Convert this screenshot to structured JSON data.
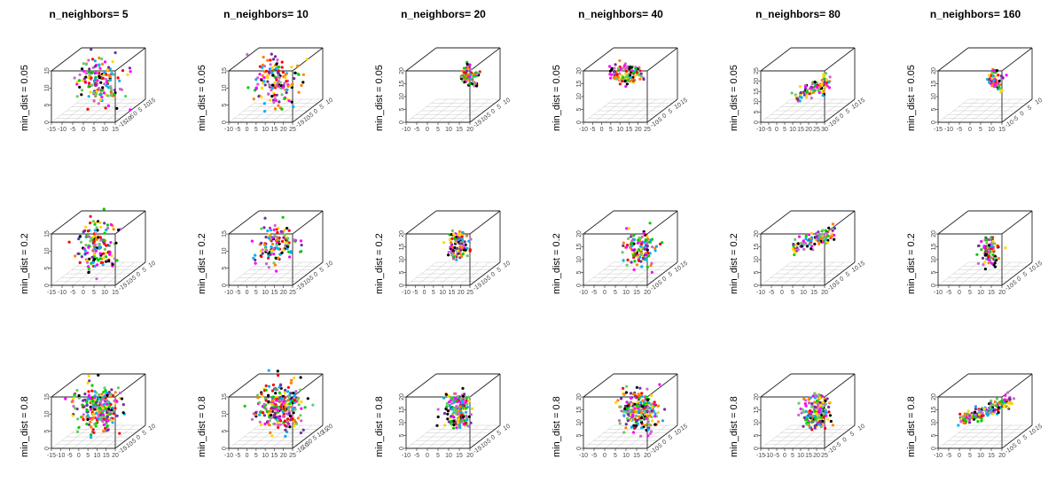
{
  "chart_data": {
    "type": "scatter",
    "layout": "3x6 grid of 3D scatter plots",
    "column_titles": [
      "n_neighbors= 5",
      "n_neighbors= 10",
      "n_neighbors= 20",
      "n_neighbors= 40",
      "n_neighbors= 80",
      "n_neighbors= 160"
    ],
    "row_labels": [
      "min_dist = 0.05",
      "min_dist = 0.2",
      "min_dist = 0.8"
    ],
    "colors": [
      "#ff00ff",
      "#00b0f0",
      "#00cc00",
      "#000000",
      "#ffd700",
      "#ff0000",
      "#7030a0",
      "#ff7f00",
      "#66cc66",
      "#cc66cc"
    ],
    "panels": [
      {
        "row": 0,
        "col": 0,
        "xticks": [
          "-15",
          "-10",
          "-5",
          "0",
          "5",
          "10",
          "15"
        ],
        "zticks": [
          "0",
          "5",
          "10",
          "15"
        ],
        "yticks": [
          "-15",
          "-10",
          "-5",
          "0",
          "5",
          "10",
          "15"
        ],
        "shape": "blob",
        "spread": 0.42,
        "density": 160,
        "cx": 0.5,
        "cy": 0.45
      },
      {
        "row": 0,
        "col": 1,
        "xticks": [
          "-10",
          "-5",
          "0",
          "5",
          "10",
          "15",
          "20",
          "25"
        ],
        "zticks": [
          "0",
          "5",
          "10",
          "15"
        ],
        "yticks": [
          "-15",
          "-10",
          "-5",
          "0",
          "5",
          "10"
        ],
        "shape": "blob",
        "spread": 0.38,
        "density": 150,
        "cx": 0.5,
        "cy": 0.45
      },
      {
        "row": 0,
        "col": 2,
        "xticks": [
          "-10",
          "-5",
          "0",
          "5",
          "10",
          "15",
          "20"
        ],
        "zticks": [
          "0",
          "5",
          "10",
          "15",
          "20"
        ],
        "yticks": [
          "-15",
          "-10",
          "-5",
          "0",
          "5",
          "10"
        ],
        "shape": "tree",
        "spread": 0.25,
        "density": 90,
        "cx": 0.6,
        "cy": 0.4
      },
      {
        "row": 0,
        "col": 3,
        "xticks": [
          "-10",
          "-5",
          "0",
          "5",
          "10",
          "15",
          "20",
          "25"
        ],
        "zticks": [
          "0",
          "5",
          "10",
          "15",
          "20"
        ],
        "yticks": [
          "-10",
          "-5",
          "0",
          "5",
          "10",
          "15"
        ],
        "shape": "ring",
        "spread": 0.28,
        "density": 110,
        "cx": 0.45,
        "cy": 0.35
      },
      {
        "row": 0,
        "col": 4,
        "xticks": [
          "-10",
          "-5",
          "0",
          "5",
          "10",
          "15",
          "20",
          "25",
          "30"
        ],
        "zticks": [
          "0",
          "5",
          "10",
          "15",
          "20",
          "25"
        ],
        "yticks": [
          "-10",
          "-5",
          "0",
          "5",
          "10",
          "15"
        ],
        "shape": "streak",
        "spread": 0.25,
        "density": 90,
        "cx": 0.55,
        "cy": 0.55
      },
      {
        "row": 0,
        "col": 5,
        "xticks": [
          "-15",
          "-10",
          "-5",
          "0",
          "5",
          "10",
          "15"
        ],
        "zticks": [
          "0",
          "5",
          "10",
          "15",
          "20"
        ],
        "yticks": [
          "-10",
          "-5",
          "0",
          "5",
          "10"
        ],
        "shape": "tree",
        "spread": 0.22,
        "density": 70,
        "cx": 0.55,
        "cy": 0.45
      },
      {
        "row": 1,
        "col": 0,
        "xticks": [
          "-15",
          "-10",
          "-5",
          "0",
          "5",
          "10",
          "15"
        ],
        "zticks": [
          "0",
          "5",
          "10",
          "15"
        ],
        "yticks": [
          "-15",
          "-10",
          "-5",
          "0",
          "5",
          "10"
        ],
        "shape": "blob",
        "spread": 0.42,
        "density": 150,
        "cx": 0.5,
        "cy": 0.45
      },
      {
        "row": 1,
        "col": 1,
        "xticks": [
          "-10",
          "-5",
          "0",
          "5",
          "10",
          "15",
          "20",
          "25"
        ],
        "zticks": [
          "0",
          "5",
          "10",
          "15"
        ],
        "yticks": [
          "-15",
          "-10",
          "-5",
          "0",
          "5",
          "10"
        ],
        "shape": "blob",
        "spread": 0.36,
        "density": 120,
        "cx": 0.5,
        "cy": 0.45
      },
      {
        "row": 1,
        "col": 2,
        "xticks": [
          "-10",
          "-5",
          "0",
          "5",
          "10",
          "15",
          "20",
          "25"
        ],
        "zticks": [
          "0",
          "5",
          "10",
          "15",
          "20"
        ],
        "yticks": [
          "-15",
          "-10",
          "-5",
          "0",
          "5",
          "10"
        ],
        "shape": "column",
        "spread": 0.25,
        "density": 110,
        "cx": 0.55,
        "cy": 0.45
      },
      {
        "row": 1,
        "col": 3,
        "xticks": [
          "-10",
          "-5",
          "0",
          "5",
          "10",
          "15",
          "20"
        ],
        "zticks": [
          "0",
          "5",
          "10",
          "15",
          "20"
        ],
        "yticks": [
          "-10",
          "-5",
          "0",
          "5",
          "10",
          "15"
        ],
        "shape": "blob",
        "spread": 0.3,
        "density": 130,
        "cx": 0.6,
        "cy": 0.5
      },
      {
        "row": 1,
        "col": 4,
        "xticks": [
          "-10",
          "-5",
          "0",
          "5",
          "10",
          "15",
          "20"
        ],
        "zticks": [
          "0",
          "5",
          "10",
          "15",
          "20"
        ],
        "yticks": [
          "-10",
          "-5",
          "0",
          "5",
          "10",
          "15"
        ],
        "shape": "streak",
        "spread": 0.3,
        "density": 110,
        "cx": 0.55,
        "cy": 0.4
      },
      {
        "row": 1,
        "col": 5,
        "xticks": [
          "-10",
          "-5",
          "0",
          "5",
          "10",
          "15",
          "20"
        ],
        "zticks": [
          "0",
          "5",
          "10",
          "15",
          "20"
        ],
        "yticks": [
          "-10",
          "-5",
          "0",
          "5",
          "10",
          "15"
        ],
        "shape": "column",
        "spread": 0.25,
        "density": 100,
        "cx": 0.55,
        "cy": 0.55
      },
      {
        "row": 2,
        "col": 0,
        "xticks": [
          "-15",
          "-10",
          "-5",
          "0",
          "5",
          "10",
          "15",
          "20"
        ],
        "zticks": [
          "0",
          "5",
          "10",
          "15"
        ],
        "yticks": [
          "-15",
          "-10",
          "-5",
          "0",
          "5",
          "10"
        ],
        "shape": "blob",
        "spread": 0.36,
        "density": 260,
        "cx": 0.5,
        "cy": 0.45
      },
      {
        "row": 2,
        "col": 1,
        "xticks": [
          "-10",
          "-5",
          "0",
          "5",
          "10",
          "15",
          "20",
          "25"
        ],
        "zticks": [
          "0",
          "5",
          "10",
          "15"
        ],
        "yticks": [
          "-15",
          "-10",
          "-5",
          "0",
          "5",
          "10",
          "15",
          "20"
        ],
        "shape": "blob",
        "spread": 0.4,
        "density": 280,
        "cx": 0.55,
        "cy": 0.45
      },
      {
        "row": 2,
        "col": 2,
        "xticks": [
          "-10",
          "-5",
          "0",
          "5",
          "10",
          "15",
          "20"
        ],
        "zticks": [
          "0",
          "5",
          "10",
          "15",
          "20"
        ],
        "yticks": [
          "-15",
          "-10",
          "-5",
          "0",
          "5",
          "10"
        ],
        "shape": "column",
        "spread": 0.3,
        "density": 180,
        "cx": 0.55,
        "cy": 0.5
      },
      {
        "row": 2,
        "col": 3,
        "xticks": [
          "-10",
          "-5",
          "0",
          "5",
          "10",
          "15",
          "20"
        ],
        "zticks": [
          "0",
          "5",
          "10",
          "15",
          "20"
        ],
        "yticks": [
          "-10",
          "-5",
          "0",
          "5",
          "10",
          "15"
        ],
        "shape": "blob",
        "spread": 0.32,
        "density": 220,
        "cx": 0.6,
        "cy": 0.5
      },
      {
        "row": 2,
        "col": 4,
        "xticks": [
          "-15",
          "-10",
          "-5",
          "0",
          "5",
          "10",
          "15",
          "20",
          "25"
        ],
        "zticks": [
          "0",
          "5",
          "10",
          "15",
          "20"
        ],
        "yticks": [
          "-10",
          "-5",
          "0",
          "5",
          "10"
        ],
        "shape": "column",
        "spread": 0.3,
        "density": 180,
        "cx": 0.6,
        "cy": 0.5
      },
      {
        "row": 2,
        "col": 5,
        "xticks": [
          "-10",
          "-5",
          "0",
          "5",
          "10",
          "15",
          "20"
        ],
        "zticks": [
          "0",
          "5",
          "10",
          "15",
          "20"
        ],
        "yticks": [
          "-10",
          "-5",
          "0",
          "5",
          "10",
          "15"
        ],
        "shape": "streak",
        "spread": 0.35,
        "density": 180,
        "cx": 0.5,
        "cy": 0.5
      }
    ]
  }
}
